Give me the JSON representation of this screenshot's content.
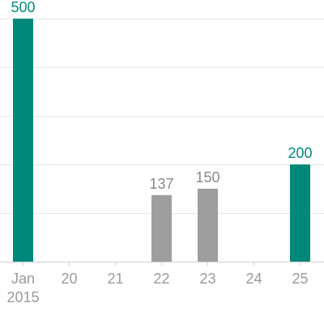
{
  "chart_data": {
    "type": "bar",
    "categories": [
      "Jan 2015",
      "20",
      "21",
      "22",
      "23",
      "24",
      "25"
    ],
    "category_lines": [
      [
        "Jan",
        "2015"
      ],
      [
        "20"
      ],
      [
        "21"
      ],
      [
        "22"
      ],
      [
        "23"
      ],
      [
        "24"
      ],
      [
        "25"
      ]
    ],
    "values": [
      500,
      null,
      null,
      137,
      150,
      null,
      200
    ],
    "value_labels": [
      "500",
      "",
      "",
      "137",
      "150",
      "",
      "200"
    ],
    "highlighted": [
      true,
      false,
      false,
      false,
      false,
      false,
      true
    ],
    "ylim": [
      0,
      500
    ],
    "gridlines": [
      0,
      100,
      200,
      300,
      400,
      500
    ],
    "grid": true,
    "title": "",
    "xlabel": "",
    "ylabel": "",
    "colors": {
      "highlight": "#00897b",
      "normal": "#9e9e9e",
      "highlight_label": "#00897b",
      "normal_label": "#8a8a8a"
    }
  }
}
